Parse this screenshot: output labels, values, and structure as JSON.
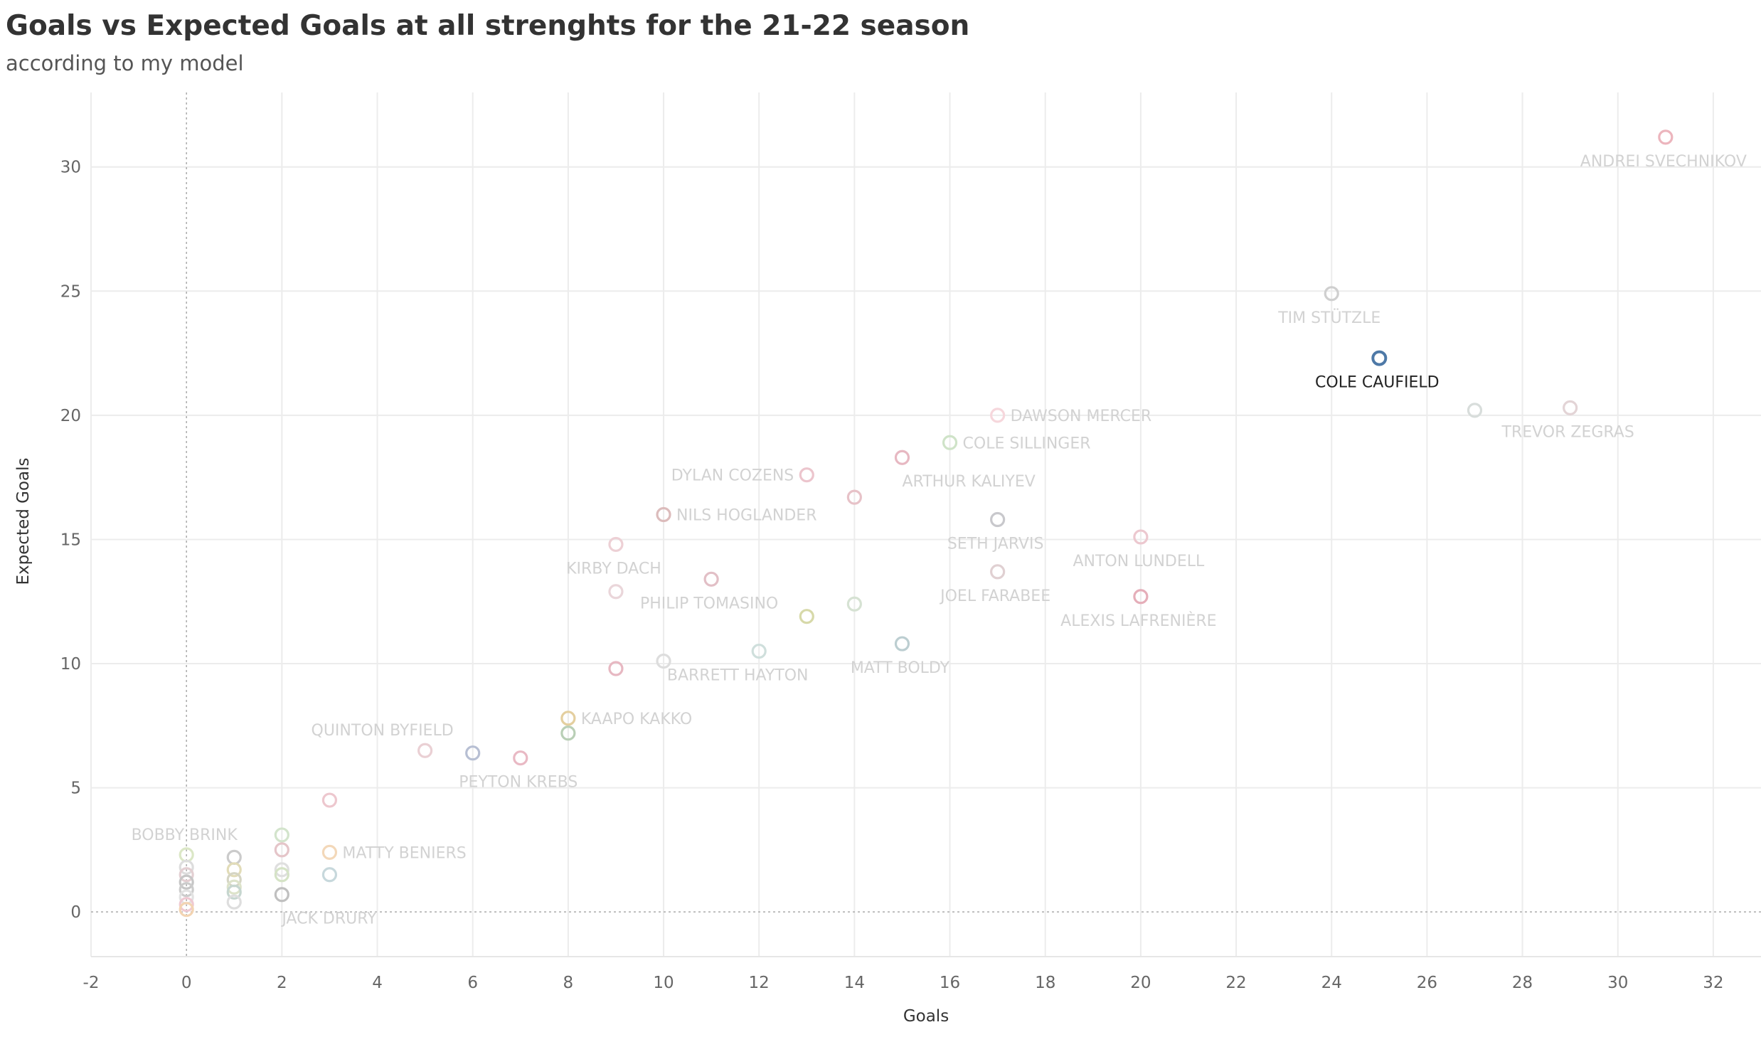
{
  "chart_data": {
    "type": "scatter",
    "title": "Goals vs Expected Goals at all strenghts for the 21-22 season",
    "subtitle": "according to my model",
    "xlabel": "Goals",
    "ylabel": "Expected Goals",
    "xlim": [
      -2,
      33
    ],
    "ylim": [
      -1.8,
      33
    ],
    "xticks": [
      -2,
      0,
      2,
      4,
      6,
      8,
      10,
      12,
      14,
      16,
      18,
      20,
      22,
      24,
      26,
      28,
      30,
      32
    ],
    "yticks": [
      0,
      5,
      10,
      15,
      20,
      25,
      30
    ],
    "grid": true,
    "highlight_color": "#4e79a7",
    "points": [
      {
        "x": 31,
        "y": 31.2,
        "label": "ANDREI SVECHNIKOV",
        "pos": "below",
        "color": "#ecb5bd"
      },
      {
        "x": 24,
        "y": 24.9,
        "label": "TIM STÜTZLE",
        "pos": "below",
        "color": "#cfcfcf"
      },
      {
        "x": 25,
        "y": 22.3,
        "label": "COLE CAUFIELD",
        "pos": "below",
        "color": "#4e79a7",
        "highlight": true
      },
      {
        "x": 27,
        "y": 20.2,
        "color": "#d8dddb"
      },
      {
        "x": 29,
        "y": 20.3,
        "label": "TREVOR ZEGRAS",
        "pos": "below",
        "color": "#e3d4d6"
      },
      {
        "x": 17,
        "y": 20.0,
        "label": "DAWSON MERCER",
        "pos": "right",
        "color": "#f6d7dc"
      },
      {
        "x": 16,
        "y": 18.9,
        "label": "COLE SILLINGER",
        "pos": "right",
        "color": "#cfe3c8"
      },
      {
        "x": 15,
        "y": 18.3,
        "label": "ARTHUR KALIYEV",
        "pos": "belowright",
        "color": "#e7b8c2"
      },
      {
        "x": 13,
        "y": 17.6,
        "label": "DYLAN COZENS",
        "pos": "left",
        "color": "#ecc5cd"
      },
      {
        "x": 14,
        "y": 16.7,
        "color": "#e7c2c8"
      },
      {
        "x": 10,
        "y": 16.0,
        "label": "NILS HOGLANDER",
        "pos": "right",
        "color": "#dcbcbc"
      },
      {
        "x": 17,
        "y": 15.8,
        "label": "SETH JARVIS",
        "pos": "below",
        "color": "#c8c8cc"
      },
      {
        "x": 20,
        "y": 15.1,
        "label": "ANTON LUNDELL",
        "pos": "below",
        "color": "#ecc8cf"
      },
      {
        "x": 9,
        "y": 14.8,
        "label": "KIRBY DACH",
        "pos": "below",
        "color": "#edd0d5"
      },
      {
        "x": 17,
        "y": 13.7,
        "label": "JOEL FARABEE",
        "pos": "below",
        "color": "#e0d0d2"
      },
      {
        "x": 11,
        "y": 13.4,
        "label": "PHILIP TOMASINO",
        "pos": "below",
        "color": "#e2bfc6"
      },
      {
        "x": 9,
        "y": 12.9,
        "color": "#ead6da"
      },
      {
        "x": 20,
        "y": 12.7,
        "label": "ALEXIS LAFRENIÈRE",
        "pos": "below",
        "color": "#e5aeb9"
      },
      {
        "x": 14,
        "y": 12.4,
        "color": "#d6e2d3"
      },
      {
        "x": 13,
        "y": 11.9,
        "color": "#d7d9a9"
      },
      {
        "x": 15,
        "y": 10.8,
        "label": "MATT BOLDY",
        "pos": "below",
        "color": "#bcced1"
      },
      {
        "x": 12,
        "y": 10.5,
        "label": "BARRETT HAYTON",
        "pos": "belowleft",
        "color": "#cfdfdc"
      },
      {
        "x": 10,
        "y": 10.1,
        "color": "#dddddd"
      },
      {
        "x": 9,
        "y": 9.8,
        "color": "#e7b8c2"
      },
      {
        "x": 8,
        "y": 7.8,
        "label": "KAAPO KAKKO",
        "pos": "right",
        "color": "#e4cf9f"
      },
      {
        "x": 8,
        "y": 7.2,
        "color": "#b9cfb6"
      },
      {
        "x": 5,
        "y": 6.5,
        "label": "QUINTON BYFIELD",
        "pos": "aboveleft",
        "color": "#ead0d4"
      },
      {
        "x": 6,
        "y": 6.4,
        "color": "#b7bfd3"
      },
      {
        "x": 7,
        "y": 6.2,
        "label": "PEYTON KREBS",
        "pos": "below",
        "color": "#e9b9c4"
      },
      {
        "x": 3,
        "y": 4.5,
        "color": "#edc7ce"
      },
      {
        "x": 2,
        "y": 3.1,
        "color": "#d3e4cc"
      },
      {
        "x": 0,
        "y": 2.3,
        "label": "BOBBY BRINK",
        "pos": "above",
        "color": "#dbe7c6"
      },
      {
        "x": 3,
        "y": 2.4,
        "label": "MATTY BENIERS",
        "pos": "right",
        "color": "#f3d8b9"
      },
      {
        "x": 2,
        "y": 2.5,
        "color": "#e5c5c9"
      },
      {
        "x": 1,
        "y": 2.2,
        "color": "#cbcbcb"
      },
      {
        "x": 2,
        "y": 1.7,
        "color": "#dfdfdf"
      },
      {
        "x": 1,
        "y": 1.7,
        "color": "#e2dcb8"
      },
      {
        "x": 2,
        "y": 1.5,
        "color": "#d5e3c6"
      },
      {
        "x": 3,
        "y": 1.5,
        "color": "#c7d8dc"
      },
      {
        "x": 0,
        "y": 1.8,
        "color": "#dddddd"
      },
      {
        "x": 0,
        "y": 1.5,
        "color": "#e3cfd2"
      },
      {
        "x": 1,
        "y": 1.3,
        "color": "#d5d5c4"
      },
      {
        "x": 0,
        "y": 1.2,
        "color": "#c6c6c6"
      },
      {
        "x": 1,
        "y": 1.0,
        "color": "#dde3ca"
      },
      {
        "x": 0,
        "y": 0.9,
        "color": "#cccccc"
      },
      {
        "x": 1,
        "y": 0.8,
        "color": "#c6d6cf"
      },
      {
        "x": 2,
        "y": 0.7,
        "label": "JACK DRURY",
        "pos": "belowright",
        "color": "#c0c0c0"
      },
      {
        "x": 0,
        "y": 0.6,
        "color": "#e2e2e2"
      },
      {
        "x": 1,
        "y": 0.4,
        "color": "#dedede"
      },
      {
        "x": 0,
        "y": 0.3,
        "color": "#efc9d2"
      },
      {
        "x": 0,
        "y": 0.1,
        "color": "#f3d4b2"
      }
    ]
  }
}
